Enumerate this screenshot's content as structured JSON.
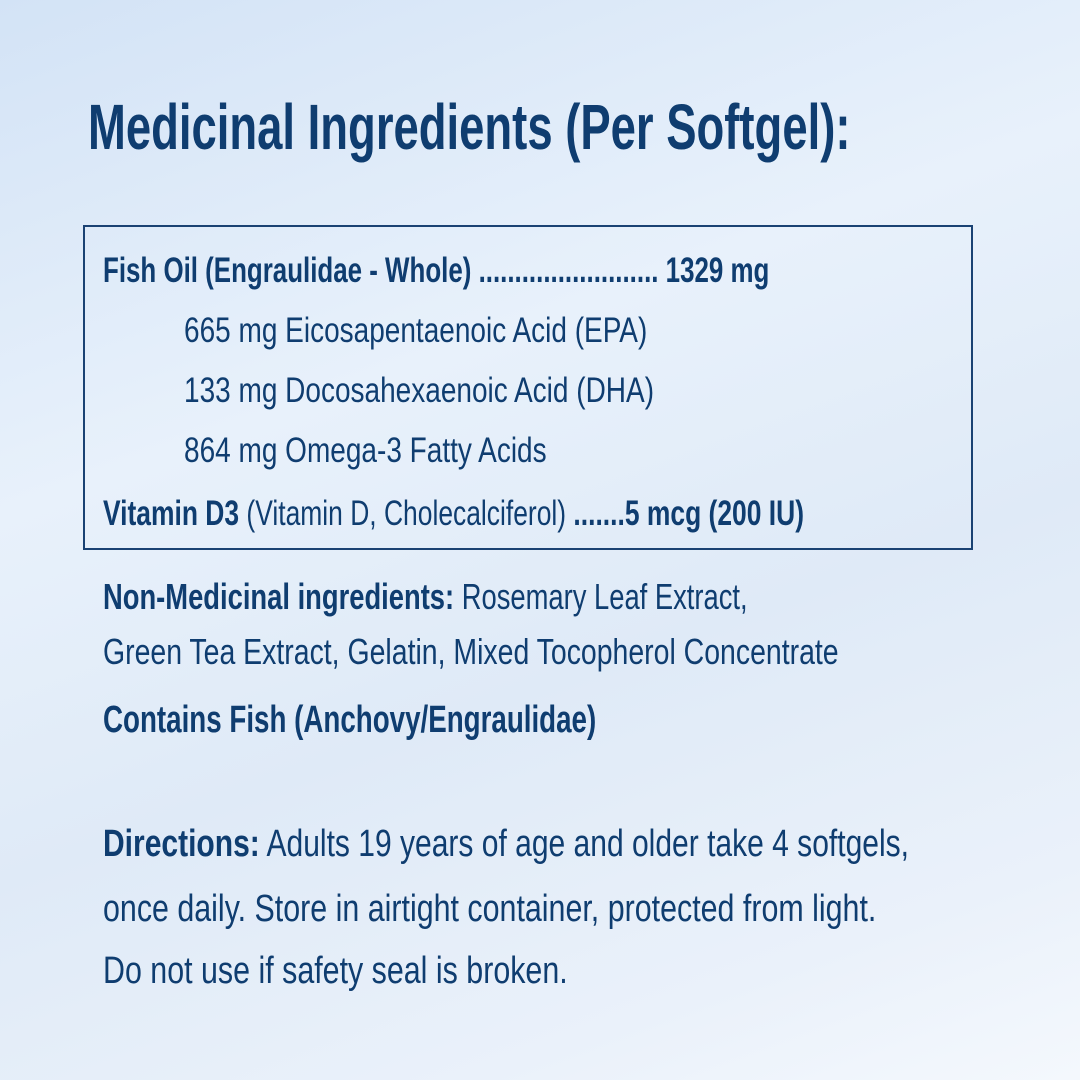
{
  "title": "Medicinal Ingredients (Per Softgel):",
  "medicinal": {
    "fish_oil": {
      "label": "Fish Oil (Engraulidae - Whole)",
      "dots": " ......................... ",
      "amount": "1329 mg"
    },
    "sub_items": [
      "665 mg Eicosapentaenoic Acid (EPA)",
      "133 mg Docosahexaenoic Acid (DHA)",
      "864 mg Omega-3 Fatty Acids"
    ],
    "vitamin_d3": {
      "label": "Vitamin D3",
      "detail": " (Vitamin D, Cholecalciferol) ",
      "dots": ".......",
      "amount": "5 mcg (200 IU)"
    }
  },
  "non_medicinal": {
    "label": "Non-Medicinal ingredients:",
    "line1": " Rosemary Leaf Extract,",
    "line2": "Green Tea Extract, Gelatin, Mixed Tocopherol Concentrate"
  },
  "allergen": "Contains Fish (Anchovy/Engraulidae)",
  "directions": {
    "label": "Directions:",
    "line1": " Adults 19 years of age and older take 4 softgels,",
    "line2": "once daily. Store in airtight container, protected from light.",
    "line3": "Do not use if safety seal is broken."
  },
  "colors": {
    "text": "#0f3d70",
    "border": "#1a4273",
    "background": "#e3edf9"
  }
}
